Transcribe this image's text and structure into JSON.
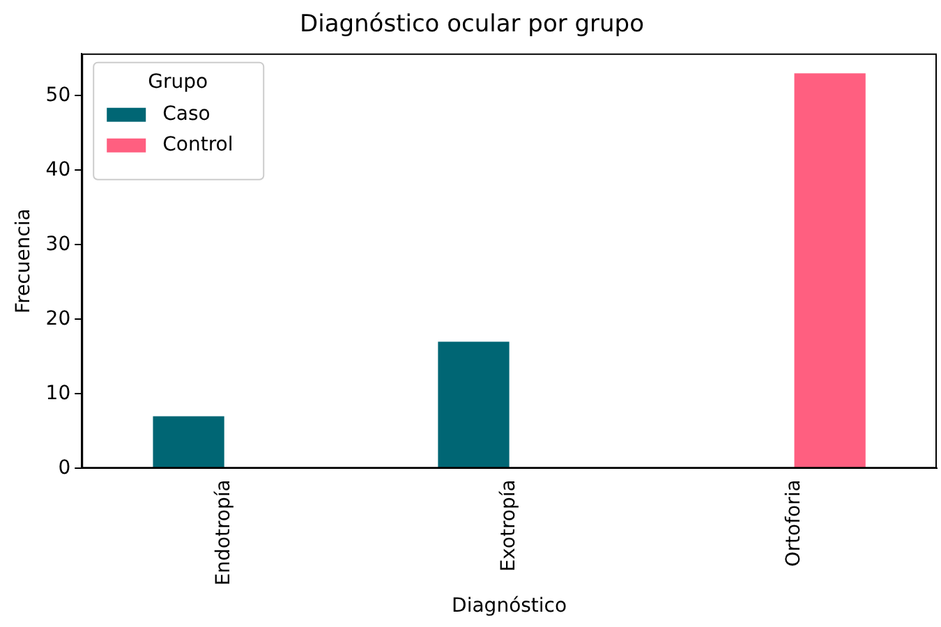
{
  "chart_data": {
    "type": "bar",
    "title": "Diagnóstico ocular por grupo",
    "xlabel": "Diagnóstico",
    "ylabel": "Frecuencia",
    "legend_title": "Grupo",
    "categories": [
      "Endotropía",
      "Exotropía",
      "Ortoforia"
    ],
    "series": [
      {
        "name": "Caso",
        "color": "#006674",
        "values": [
          7,
          17,
          0
        ]
      },
      {
        "name": "Control",
        "color": "#ff5f80",
        "values": [
          0,
          0,
          53
        ]
      }
    ],
    "ylim": [
      0,
      55.65
    ],
    "yticks": [
      0,
      10,
      20,
      30,
      40,
      50
    ],
    "grid": false,
    "legend": "top left"
  }
}
